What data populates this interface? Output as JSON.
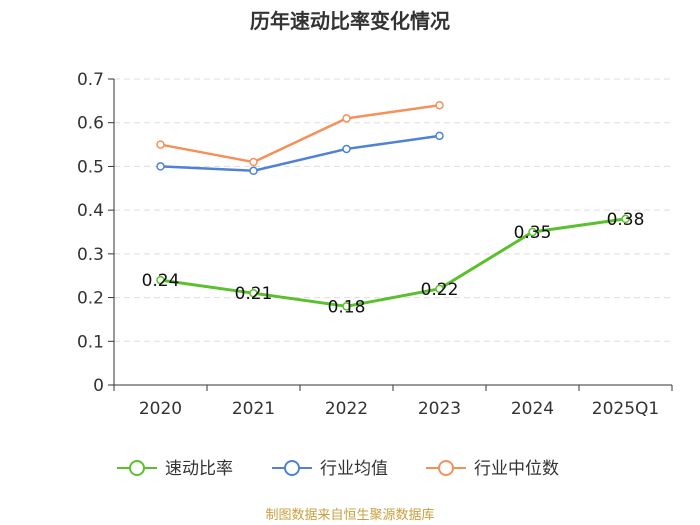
{
  "chart_data": {
    "type": "line",
    "title": "历年速动比率变化情况",
    "categories": [
      "2020",
      "2021",
      "2022",
      "2023",
      "2024",
      "2025Q1"
    ],
    "ylim": [
      0,
      0.7
    ],
    "yticks": [
      "0",
      "0.1",
      "0.2",
      "0.3",
      "0.4",
      "0.5",
      "0.6",
      "0.7"
    ],
    "ytick_values": [
      0,
      0.1,
      0.2,
      0.3,
      0.4,
      0.5,
      0.6,
      0.7
    ],
    "grid": true,
    "legend_position": "bottom",
    "series": [
      {
        "name": "速动比率",
        "color": "#5cc02e",
        "values": [
          0.24,
          0.21,
          0.18,
          0.22,
          0.35,
          0.38
        ],
        "labels": [
          "0.24",
          "0.21",
          "0.18",
          "0.22",
          "0.35",
          "0.38"
        ]
      },
      {
        "name": "行业均值",
        "color": "#4f81d9",
        "values": [
          0.5,
          0.49,
          0.54,
          0.57,
          null,
          null
        ]
      },
      {
        "name": "行业中位数",
        "color": "#f4905a",
        "values": [
          0.55,
          0.51,
          0.61,
          0.64,
          null,
          null
        ]
      }
    ],
    "source": "制图数据来自恒生聚源数据库"
  }
}
